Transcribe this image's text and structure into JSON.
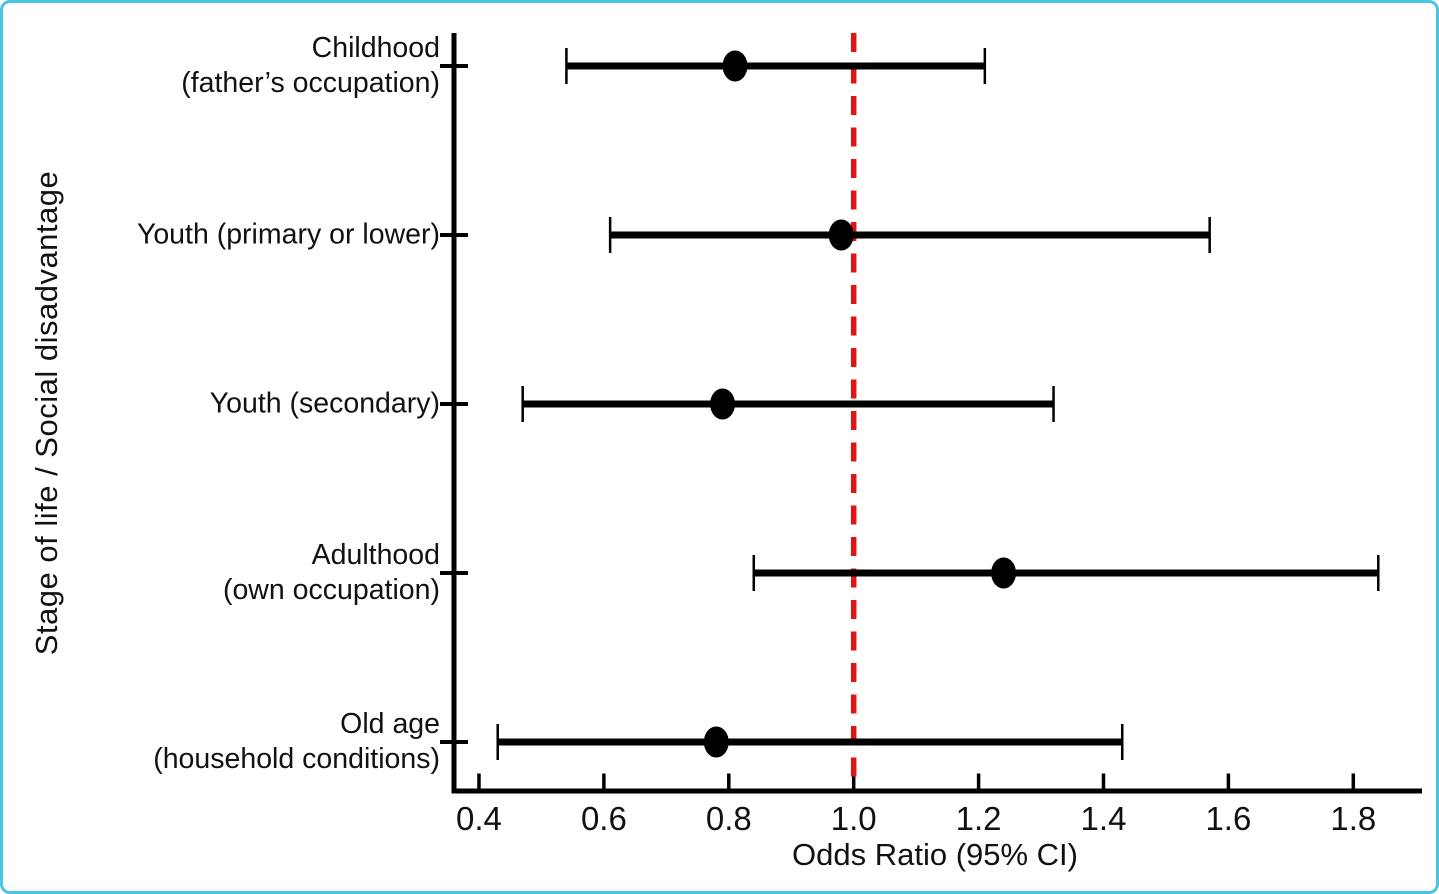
{
  "figure": {
    "border_color": "#49c4e2",
    "background_color": "#ffffff",
    "line_color": "#000000",
    "text_color": "#111111"
  },
  "chart_data": {
    "type": "forest_plot",
    "title": "",
    "xlabel": "Odds Ratio (95% CI)",
    "ylabel": "Stage of life / Social disadvantage",
    "xlim": [
      0.36,
      1.91
    ],
    "x_ticks": [
      0.4,
      0.6,
      0.8,
      1.0,
      1.2,
      1.4,
      1.6,
      1.8
    ],
    "x_tick_labels": [
      "0.4",
      "0.6",
      "0.8",
      "1.0",
      "1.2",
      "1.4",
      "1.6",
      "1.8"
    ],
    "grid": false,
    "legend": null,
    "reference_line": {
      "value": 1.0,
      "style": "dashed",
      "color": "#df1414"
    },
    "marker_color": "#000000",
    "ci_color": "#000000",
    "rows": [
      {
        "label_lines": [
          "Childhood",
          "(father’s occupation)"
        ],
        "or": 0.81,
        "ci_low": 0.54,
        "ci_high": 1.21
      },
      {
        "label_lines": [
          "Youth (primary or lower)"
        ],
        "or": 0.98,
        "ci_low": 0.61,
        "ci_high": 1.57
      },
      {
        "label_lines": [
          "Youth (secondary)"
        ],
        "or": 0.79,
        "ci_low": 0.47,
        "ci_high": 1.32
      },
      {
        "label_lines": [
          "Adulthood",
          "(own occupation)"
        ],
        "or": 1.24,
        "ci_low": 0.84,
        "ci_high": 1.84
      },
      {
        "label_lines": [
          "Old age",
          "(household conditions)"
        ],
        "or": 0.78,
        "ci_low": 0.43,
        "ci_high": 1.43
      }
    ]
  }
}
